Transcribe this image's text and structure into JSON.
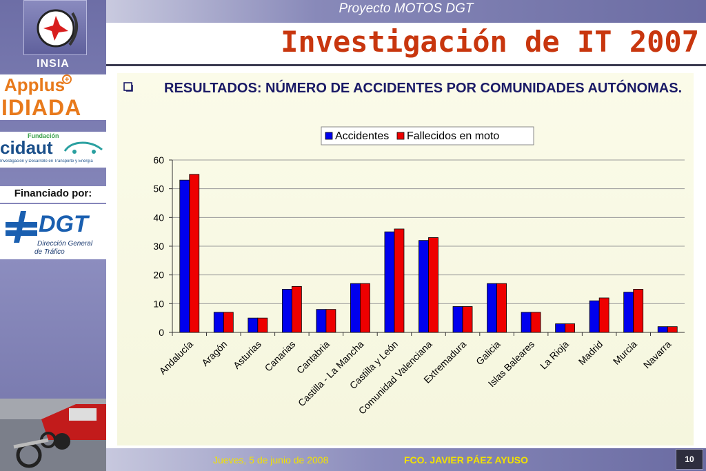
{
  "header": {
    "project": "Proyecto MOTOS DGT",
    "title": "Investigación de IT 2007"
  },
  "sidebar": {
    "insia": "INSIA",
    "applus": "Applus",
    "idiada": "IDIADA",
    "cidaut_fundacion": "Fundación",
    "cidaut": "cidaut",
    "cidaut_sub": "Investigación y Desarrollo en Transporte y Energía",
    "funded_by": "Financiado por:",
    "dgt": "DGT",
    "dgt_sub1": "Dirección General",
    "dgt_sub2": "de Tráfico"
  },
  "main": {
    "heading": "RESULTADOS: NÚMERO DE ACCIDENTES POR COMUNIDADES AUTÓNOMAS."
  },
  "footer": {
    "date": "Jueves, 5 de junio de 2008",
    "author": "FCO. JAVIER PÁEZ AYUSO",
    "page": "10"
  },
  "colors": {
    "accidentes": "#0000ee",
    "fallecidos": "#ee0000",
    "title": "#c8360e",
    "footer_text": "#f2e100"
  },
  "chart_data": {
    "type": "bar",
    "title": "",
    "xlabel": "",
    "ylabel": "",
    "ylim": [
      0,
      60
    ],
    "yticks": [
      0,
      10,
      20,
      30,
      40,
      50,
      60
    ],
    "grid": true,
    "legend": "top-center",
    "categories": [
      "Andalucía",
      "Aragón",
      "Asturias",
      "Canarias",
      "Cantabria",
      "Castilla - La Mancha",
      "Castilla y León",
      "Comunidad Valenciana",
      "Extremadura",
      "Galicia",
      "Islas Baleares",
      "La Rioja",
      "Madrid",
      "Murcia",
      "Navarra"
    ],
    "series": [
      {
        "name": "Accidentes",
        "color": "#0000ee",
        "values": [
          53,
          7,
          5,
          15,
          8,
          17,
          35,
          32,
          9,
          17,
          7,
          3,
          11,
          14,
          2
        ]
      },
      {
        "name": "Fallecidos en moto",
        "color": "#ee0000",
        "values": [
          55,
          7,
          5,
          16,
          8,
          17,
          36,
          33,
          9,
          17,
          7,
          3,
          12,
          15,
          2
        ]
      }
    ]
  }
}
